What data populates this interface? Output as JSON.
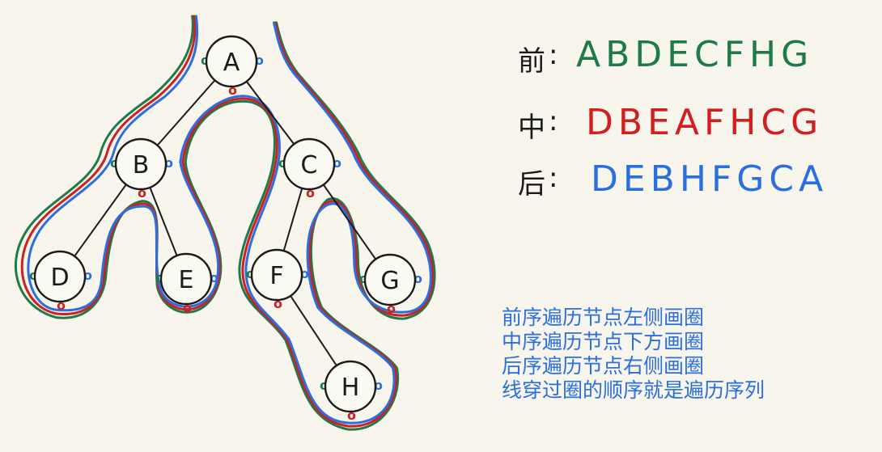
{
  "tree": {
    "nodes": [
      {
        "id": "A",
        "label": "A"
      },
      {
        "id": "B",
        "label": "B"
      },
      {
        "id": "C",
        "label": "C"
      },
      {
        "id": "D",
        "label": "D"
      },
      {
        "id": "E",
        "label": "E"
      },
      {
        "id": "F",
        "label": "F"
      },
      {
        "id": "G",
        "label": "G"
      },
      {
        "id": "H",
        "label": "H"
      }
    ],
    "edges": [
      [
        "A",
        "B"
      ],
      [
        "A",
        "C"
      ],
      [
        "B",
        "D"
      ],
      [
        "B",
        "E"
      ],
      [
        "C",
        "F"
      ],
      [
        "C",
        "G"
      ],
      [
        "F",
        "H"
      ]
    ]
  },
  "orders": [
    {
      "key": "pre",
      "label": "前",
      "value": "ABDECFHG",
      "color": "#1f7a4a"
    },
    {
      "key": "in",
      "label": "中",
      "value": "DBEAFHCG",
      "color": "#d11f1f"
    },
    {
      "key": "post",
      "label": "后",
      "value": "DEBHFGCA",
      "color": "#2a6ee0"
    }
  ],
  "notes": [
    "前序遍历节点左侧画圈",
    "中序遍历节点下方画圈",
    "后序遍历节点右侧画圈",
    "线穿过圈的顺序就是遍历序列"
  ],
  "colors": {
    "pre": "#1f7a4a",
    "in": "#d11f1f",
    "post": "#2a6ee0",
    "ink": "#1a1a1a"
  }
}
